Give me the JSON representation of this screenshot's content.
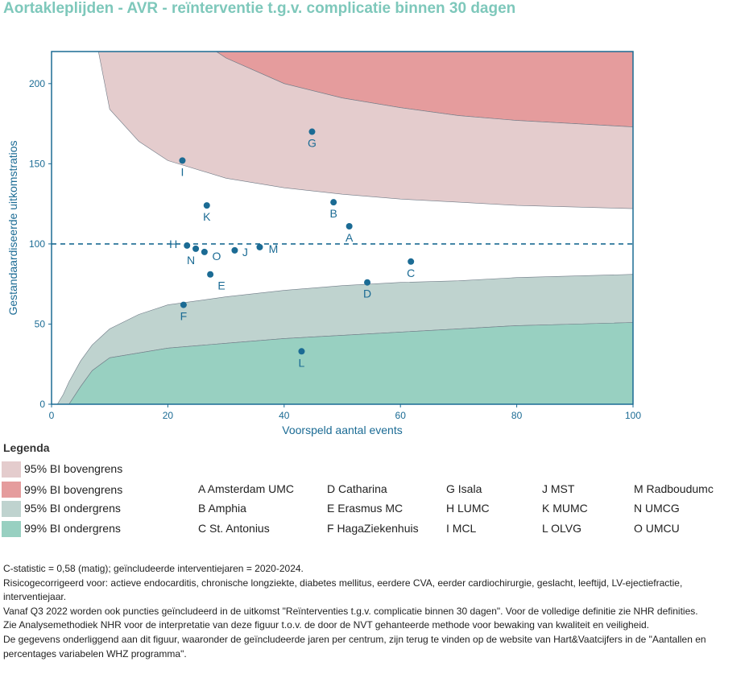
{
  "title": "Aortakleplijden - AVR - reïnterventie t.g.v. complicatie binnen 30 dagen",
  "chart_data": {
    "type": "scatter",
    "title": "Aortakleplijden - AVR - reïnterventie t.g.v. complicatie binnen 30 dagen",
    "xlabel": "Voorspeld aantal events",
    "ylabel": "Gestandaardiseerde uitkomstratios",
    "xlim": [
      0,
      100
    ],
    "ylim": [
      0,
      220
    ],
    "x_ticks": [
      "0",
      "20",
      "40",
      "60",
      "80",
      "100"
    ],
    "y_ticks": [
      "0",
      "50",
      "100",
      "150",
      "200"
    ],
    "reference_line": 100,
    "bands": {
      "x": [
        1,
        2,
        3,
        5,
        7,
        10,
        15,
        20,
        30,
        40,
        50,
        60,
        70,
        80,
        90,
        100
      ],
      "upper99": [
        999,
        999,
        999,
        999,
        999,
        999,
        999,
        999,
        216,
        200,
        191,
        185,
        180,
        177,
        175,
        173
      ],
      "upper95": [
        999,
        999,
        999,
        999,
        999,
        184,
        164,
        152,
        141,
        135,
        131,
        128,
        126,
        124,
        123,
        122
      ],
      "lower95": [
        0,
        6,
        14,
        27,
        37,
        47,
        56,
        62,
        67,
        71,
        74,
        76,
        77,
        79,
        80,
        81
      ],
      "lower99": [
        0,
        0,
        0,
        11,
        21,
        29,
        32,
        35,
        38,
        41,
        43,
        45,
        47,
        49,
        50,
        51
      ]
    },
    "points": [
      {
        "label": "A",
        "x": 51.2,
        "y": 111
      },
      {
        "label": "B",
        "x": 48.5,
        "y": 126
      },
      {
        "label": "C",
        "x": 61.8,
        "y": 89
      },
      {
        "label": "D",
        "x": 54.3,
        "y": 76
      },
      {
        "label": "E",
        "x": 27.3,
        "y": 81
      },
      {
        "label": "F",
        "x": 22.7,
        "y": 62
      },
      {
        "label": "G",
        "x": 44.8,
        "y": 170
      },
      {
        "label": "H",
        "x": 23.3,
        "y": 99
      },
      {
        "label": "I",
        "x": 22.5,
        "y": 152
      },
      {
        "label": "J",
        "x": 31.5,
        "y": 96
      },
      {
        "label": "K",
        "x": 26.7,
        "y": 124
      },
      {
        "label": "L",
        "x": 43.0,
        "y": 33
      },
      {
        "label": "M",
        "x": 35.8,
        "y": 98
      },
      {
        "label": "N",
        "x": 24.8,
        "y": 97
      },
      {
        "label": "O",
        "x": 26.3,
        "y": 95
      }
    ],
    "colors": {
      "upper99": "#e59c9d",
      "upper95": "#e4cccd",
      "lower95": "#bfd3cf",
      "lower99": "#98d0c1",
      "point": "#1b6b94",
      "frame": "#1b6b94",
      "title": "#7ec8bb"
    }
  },
  "legend": {
    "title": "Legenda",
    "items": [
      {
        "label": "95% BI bovengrens",
        "color": "#e4cccd"
      },
      {
        "label": "99% BI bovengrens",
        "color": "#e59c9d"
      },
      {
        "label": "95% BI ondergrens",
        "color": "#bfd3cf"
      },
      {
        "label": "99% BI ondergrens",
        "color": "#98d0c1"
      }
    ]
  },
  "centers": [
    [
      "A Amsterdam UMC",
      "B Amphia",
      "C St. Antonius"
    ],
    [
      "D Catharina",
      "E Erasmus MC",
      "F HagaZiekenhuis"
    ],
    [
      "G Isala",
      "H LUMC",
      "I MCL"
    ],
    [
      "J MST",
      "K MUMC",
      "L OLVG"
    ],
    [
      "M Radboudumc",
      "N UMCG",
      "O UMCU"
    ]
  ],
  "footnotes": [
    "C-statistic =  0,58 (matig); geïncludeerde interventiejaren = 2020-2024.",
    "Risicogecorrigeerd voor: actieve endocarditis, chronische longziekte, diabetes mellitus, eerdere CVA, eerder cardiochirurgie, geslacht, leeftijd, LV-ejectiefractie,",
    "interventiejaar.",
    "Vanaf Q3 2022 worden ook puncties geïncludeerd in de uitkomst \"Reïnterventies t.g.v. complicatie binnen 30 dagen\". Voor de volledige definitie zie NHR definities.",
    "Zie Analysemethodiek NHR voor de interpretatie van deze figuur t.o.v. de door de NVT gehanteerde methode voor bewaking van kwaliteit en veiligheid.",
    "De gegevens onderliggend aan dit figuur, waaronder de geïncludeerde jaren per centrum, zijn terug te vinden op de website van Hart&Vaatcijfers in de \"Aantallen en",
    "percentages variabelen WHZ programma\"."
  ]
}
